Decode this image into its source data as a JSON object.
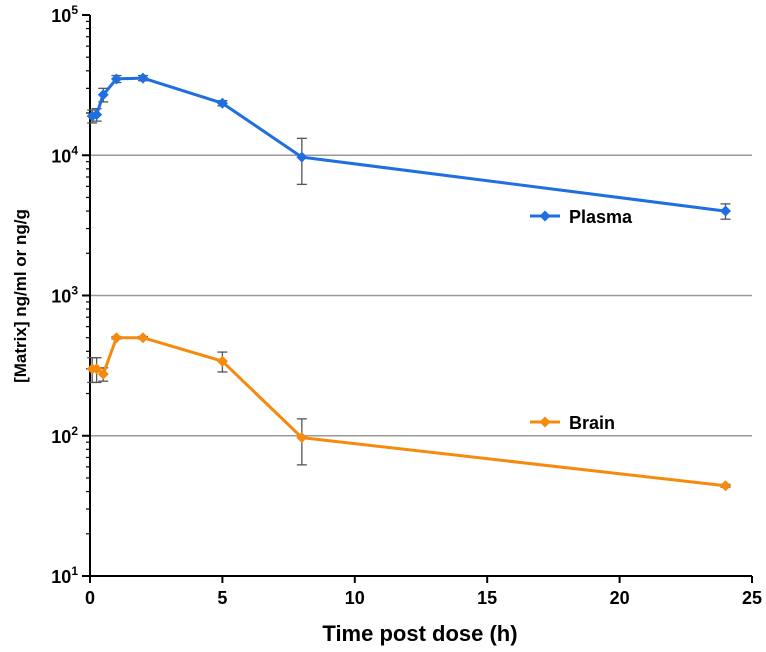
{
  "chart_data": {
    "type": "line",
    "title": "",
    "xlabel": "Time post dose (h)",
    "ylabel": "[Matrix] ng/ml or ng/g",
    "xlim": [
      0,
      25
    ],
    "ylim": [
      10,
      100000
    ],
    "yscale": "log",
    "x_ticks": [
      "0",
      "5",
      "10",
      "15",
      "20",
      "25"
    ],
    "y_ticks": [
      {
        "base": "10",
        "exp": "1"
      },
      {
        "base": "10",
        "exp": "2"
      },
      {
        "base": "10",
        "exp": "3"
      },
      {
        "base": "10",
        "exp": "4"
      },
      {
        "base": "10",
        "exp": "5"
      }
    ],
    "gridlines_at": [
      100,
      1000,
      10000
    ],
    "series": [
      {
        "name": "Plasma",
        "color": "#1f6fe0",
        "x": [
          0.083,
          0.25,
          0.5,
          1,
          2,
          5,
          8,
          24
        ],
        "values": [
          19000,
          19500,
          27000,
          35000,
          35500,
          23500,
          9700,
          4000
        ],
        "err_low": [
          17000,
          17500,
          24000,
          33000,
          34000,
          22500,
          6200,
          3500
        ],
        "err_high": [
          21000,
          21500,
          30000,
          37000,
          37000,
          24500,
          13200,
          4500
        ]
      },
      {
        "name": "Brain",
        "color": "#f58a0c",
        "x": [
          0.083,
          0.25,
          0.5,
          1,
          2,
          5,
          8,
          24
        ],
        "values": [
          300,
          300,
          275,
          500,
          500,
          340,
          97,
          44
        ],
        "err_low": [
          240,
          240,
          245,
          490,
          490,
          285,
          62,
          43
        ],
        "err_high": [
          360,
          360,
          305,
          510,
          510,
          395,
          132,
          45
        ]
      }
    ],
    "legend": [
      {
        "name": "Plasma",
        "placement": "right, beside plasma curve"
      },
      {
        "name": "Brain",
        "placement": "right, beside brain curve"
      }
    ]
  }
}
